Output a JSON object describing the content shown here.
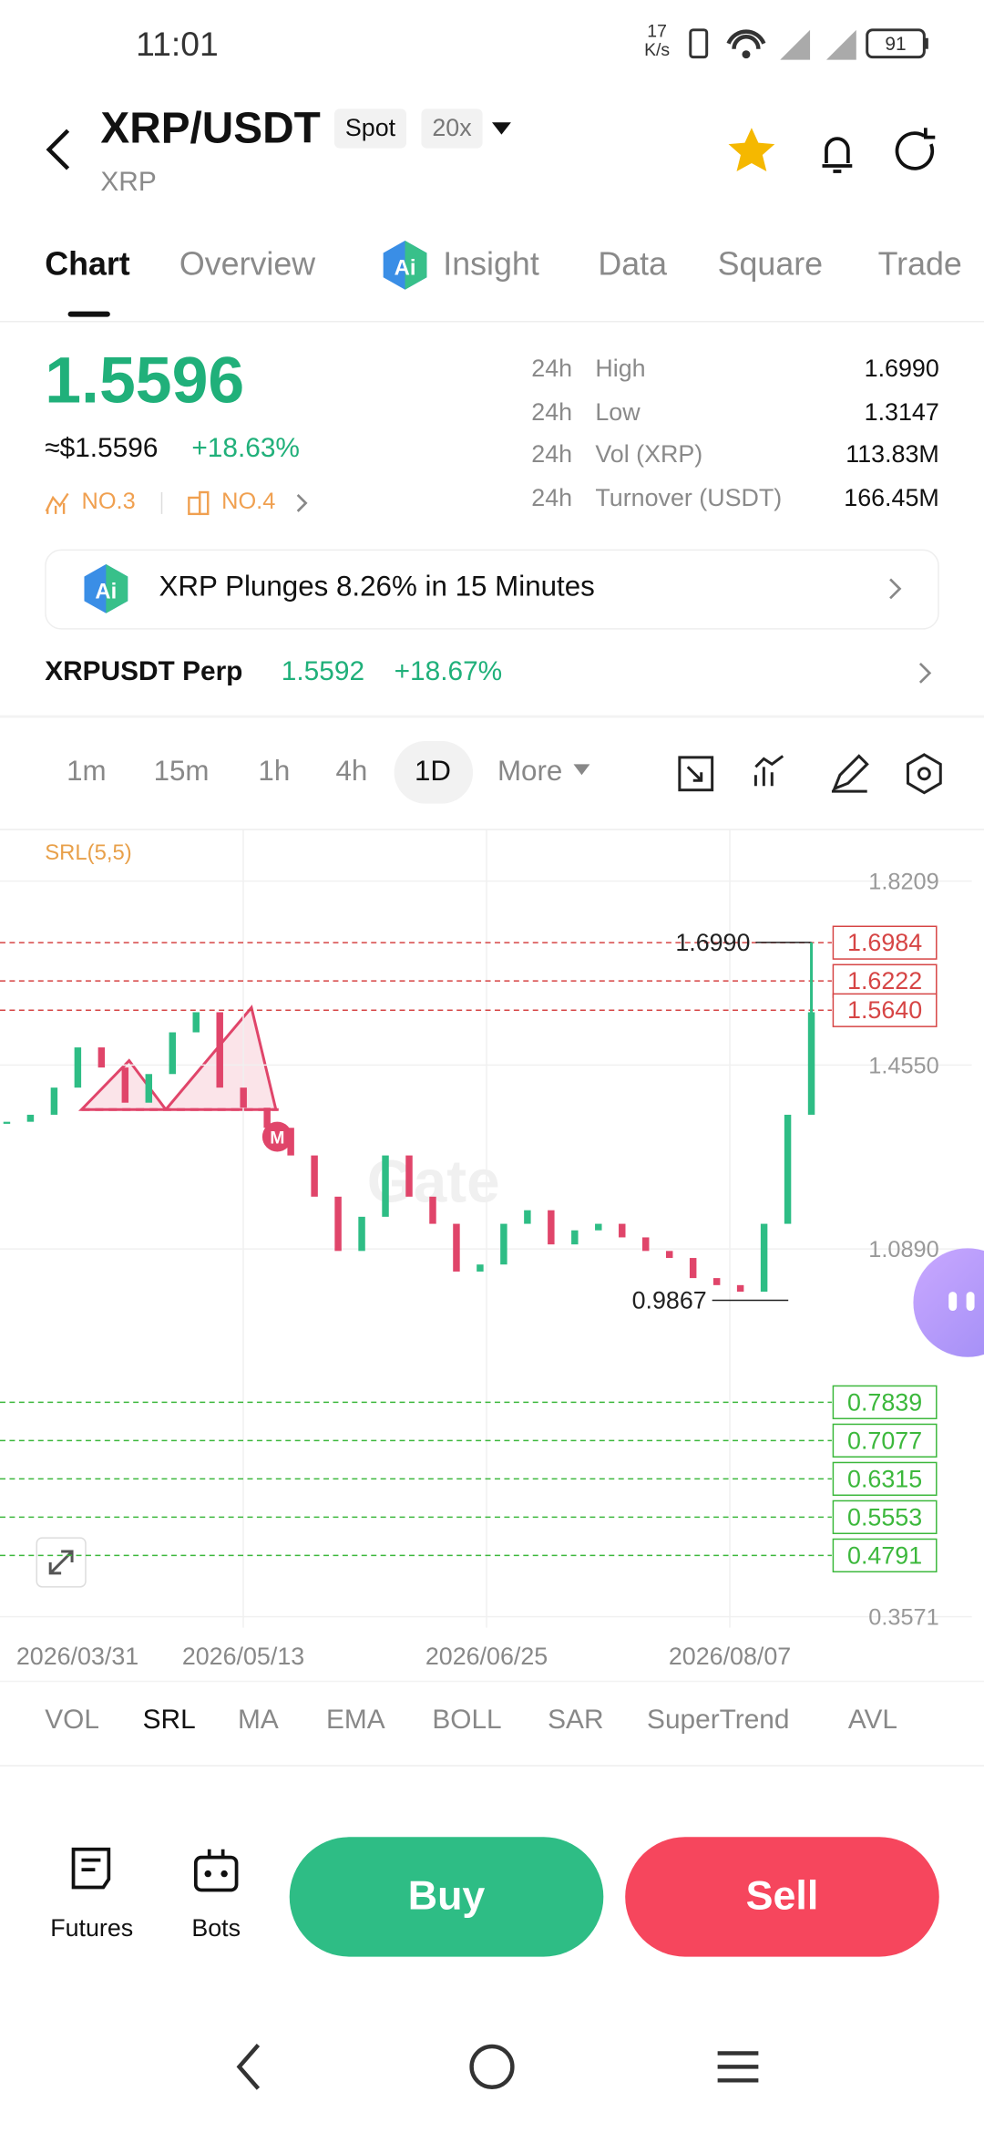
{
  "status_bar": {
    "time": "11:01",
    "net_speed": "17",
    "net_unit": "K/s",
    "battery": "91"
  },
  "header": {
    "pair": "XRP/USDT",
    "base": "XRP",
    "badge_spot": "Spot",
    "badge_leverage": "20x"
  },
  "tabs": [
    "Chart",
    "Overview",
    "Insight",
    "Data",
    "Square",
    "Trade"
  ],
  "price": {
    "last": "1.5596",
    "usd": "≈$1.5596",
    "change": "+18.63%",
    "rank1": "NO.3",
    "rank2": "NO.4"
  },
  "stats": [
    {
      "period": "24h",
      "label": "High",
      "value": "1.6990"
    },
    {
      "period": "24h",
      "label": "Low",
      "value": "1.3147"
    },
    {
      "period": "24h",
      "label": "Vol (XRP)",
      "value": "113.83M"
    },
    {
      "period": "24h",
      "label": "Turnover (USDT)",
      "value": "166.45M"
    }
  ],
  "news": "XRP Plunges 8.26% in 15 Minutes",
  "perp": {
    "name": "XRPUSDT Perp",
    "price": "1.5592",
    "change": "+18.67%"
  },
  "intervals": [
    "1m",
    "15m",
    "1h",
    "4h",
    "1D",
    "More"
  ],
  "chart": {
    "indicator_label": "SRL(5,5)",
    "watermark": "Gate",
    "ylim": [
      0.3571,
      1.8209
    ],
    "yticks": [
      0.3571,
      {
        "value": 1.089,
        "label": "1.0890"
      },
      {
        "value": 1.455,
        "label": "1.4550"
      },
      1.8209
    ],
    "x_labels": [
      "2026/03/31",
      "2026/05/13",
      "2026/06/25",
      "2026/08/07"
    ],
    "closes": [
      1.342,
      1.356,
      1.41,
      1.49,
      1.45,
      1.38,
      1.437,
      1.52,
      1.56,
      1.41,
      1.37,
      1.33,
      1.275,
      1.193,
      1.085,
      1.153,
      1.275,
      1.193,
      1.139,
      1.044,
      1.058,
      1.139,
      1.166,
      1.098,
      1.126,
      1.139,
      1.112,
      1.085,
      1.071,
      1.031,
      1.017,
      1.004,
      1.139,
      1.356,
      1.56
    ],
    "high": {
      "value": 1.699,
      "label": "1.6990"
    },
    "low": 0.9867,
    "resistance": [
      1.6984,
      1.6222,
      {
        "value": 1.564,
        "label": "1.5640"
      }
    ],
    "support": [
      0.7839,
      0.7077,
      0.6315,
      0.5553,
      0.4791
    ]
  },
  "indicators": [
    "VOL",
    "SRL",
    "MA",
    "EMA",
    "BOLL",
    "SAR",
    "SuperTrend",
    "AVL"
  ],
  "bottom": {
    "futures": "Futures",
    "bots": "Bots",
    "buy": "Buy",
    "sell": "Sell"
  }
}
